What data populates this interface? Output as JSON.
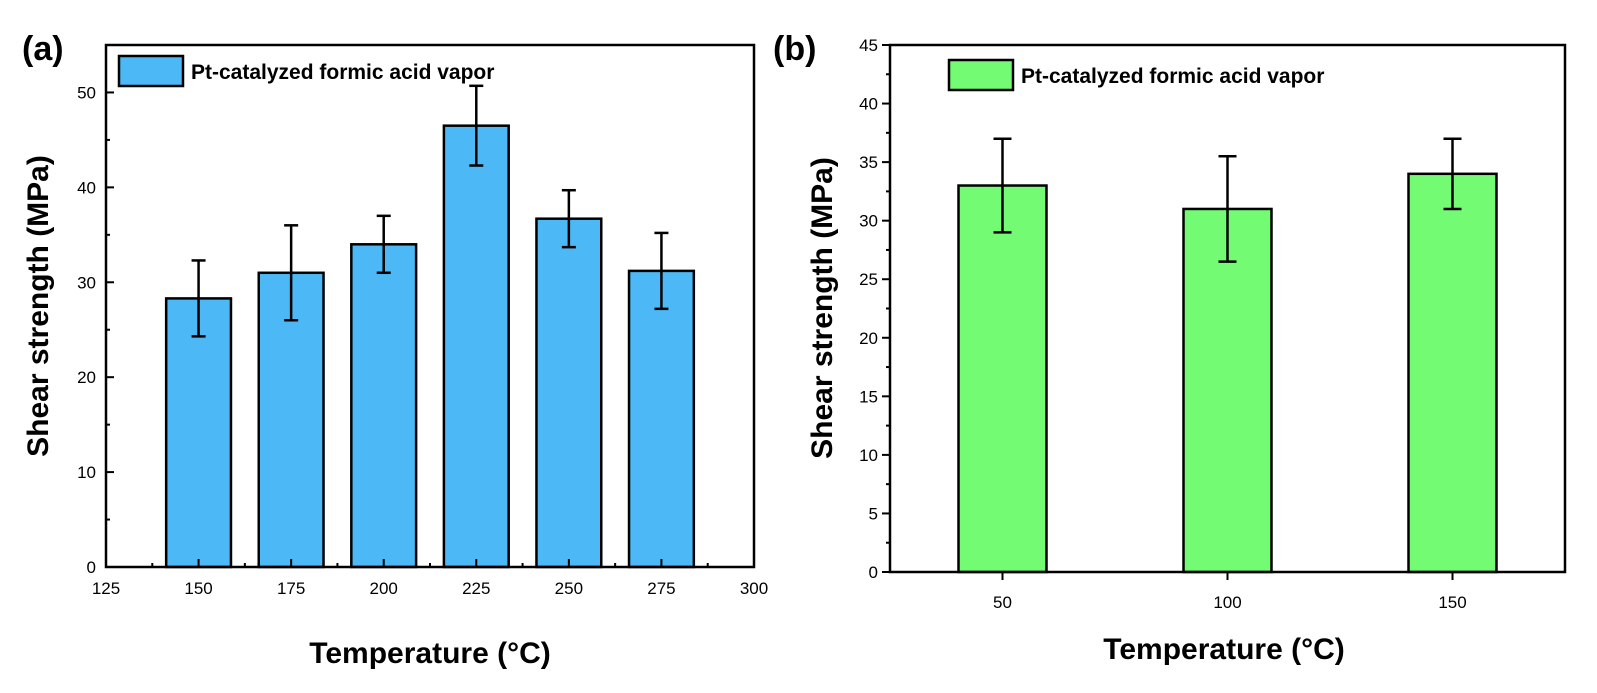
{
  "chart_data": [
    {
      "type": "bar",
      "panel_label": "(a)",
      "legend": "Pt-catalyzed formic acid vapor",
      "legend_position": "top-left",
      "color": "#4cb8f5",
      "xlabel": "Temperature (°C)",
      "ylabel": "Shear strength (MPa)",
      "xlim": [
        125,
        300
      ],
      "ylim": [
        0,
        55
      ],
      "x_ticks": [
        125,
        150,
        175,
        200,
        225,
        250,
        275,
        300
      ],
      "y_ticks": [
        0,
        10,
        20,
        30,
        40,
        50
      ],
      "x": [
        150,
        175,
        200,
        225,
        250,
        275
      ],
      "values": [
        28.3,
        31,
        34,
        46.5,
        36.7,
        31.2
      ],
      "errors": [
        4,
        5,
        3,
        4.2,
        3,
        4
      ],
      "bar_width": 17.5
    },
    {
      "type": "bar",
      "panel_label": "(b)",
      "legend": "Pt-catalyzed formic acid vapor",
      "legend_position": "top-left",
      "color": "#74fb74",
      "xlabel": "Temperature (°C)",
      "ylabel": "Shear strength (MPa)",
      "categories": [
        "50",
        "100",
        "150"
      ],
      "ylim": [
        0,
        45
      ],
      "y_ticks": [
        0,
        5,
        10,
        15,
        20,
        25,
        30,
        35,
        40,
        45
      ],
      "values": [
        33,
        31,
        34
      ],
      "errors": [
        4,
        4.5,
        3
      ]
    }
  ]
}
